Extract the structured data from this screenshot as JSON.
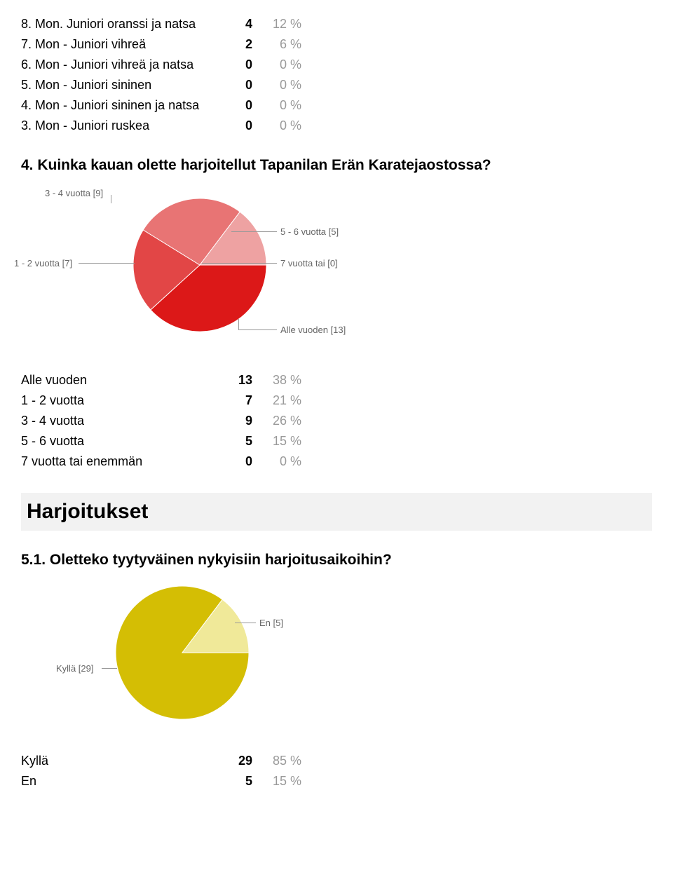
{
  "table1": {
    "rows": [
      {
        "label": "8. Mon. Juniori oranssi ja natsa",
        "count": "4",
        "pct": "12 %"
      },
      {
        "label": "7. Mon - Juniori vihreä",
        "count": "2",
        "pct": "6 %"
      },
      {
        "label": "6. Mon - Juniori vihreä ja natsa",
        "count": "0",
        "pct": "0 %"
      },
      {
        "label": "5. Mon - Juniori sininen",
        "count": "0",
        "pct": "0 %"
      },
      {
        "label": "4. Mon - Juniori sininen ja natsa",
        "count": "0",
        "pct": "0 %"
      },
      {
        "label": "3. Mon - Juniori ruskea",
        "count": "0",
        "pct": "0 %"
      }
    ]
  },
  "q4": {
    "title": "4. Kuinka kauan olette harjoitellut Tapanilan Erän Karatejaostossa?",
    "chart": {
      "type": "pie",
      "slices": [
        {
          "key": "alle",
          "value": 13,
          "color": "#dc1818",
          "label_fmt": "Alle vuoden [13]"
        },
        {
          "key": "1_2",
          "value": 7,
          "color": "#e24646",
          "label_fmt": "1 - 2 vuotta [7]"
        },
        {
          "key": "3_4",
          "value": 9,
          "color": "#e87474",
          "label_fmt": "3 - 4 vuotta [9]"
        },
        {
          "key": "5_6",
          "value": 5,
          "color": "#eea2a2",
          "label_fmt": "5 - 6 vuotta [5]"
        },
        {
          "key": "7plus",
          "value": 0,
          "color": "#f4d0d0",
          "label_fmt": "7 vuotta tai  [0]"
        }
      ],
      "radius": 95,
      "label_fontsize": 13,
      "label_color": "#666666",
      "leader_color": "#999999",
      "background": "#ffffff",
      "start_angle_deg": 0
    },
    "rows": [
      {
        "label": "Alle vuoden",
        "count": "13",
        "pct": "38 %"
      },
      {
        "label": "1 - 2 vuotta",
        "count": "7",
        "pct": "21 %"
      },
      {
        "label": "3 - 4 vuotta",
        "count": "9",
        "pct": "26 %"
      },
      {
        "label": "5 - 6 vuotta",
        "count": "5",
        "pct": "15 %"
      },
      {
        "label": "7 vuotta tai enemmän",
        "count": "0",
        "pct": "0 %"
      }
    ]
  },
  "section2": {
    "title": "Harjoitukset"
  },
  "q5_1": {
    "title": "5.1. Oletteko tyytyväinen nykyisiin harjoitusaikoihin?",
    "chart": {
      "type": "pie",
      "slices": [
        {
          "key": "kylla",
          "value": 29,
          "color": "#d4be04",
          "label_fmt": "Kyllä [29]"
        },
        {
          "key": "en",
          "value": 5,
          "color": "#f0e999",
          "label_fmt": "En [5]"
        }
      ],
      "radius": 95,
      "label_fontsize": 13,
      "label_color": "#666666",
      "leader_color": "#999999",
      "background": "#ffffff",
      "start_angle_deg": 0
    },
    "rows": [
      {
        "label": "Kyllä",
        "count": "29",
        "pct": "85 %"
      },
      {
        "label": "En",
        "count": "5",
        "pct": "15 %"
      }
    ]
  }
}
